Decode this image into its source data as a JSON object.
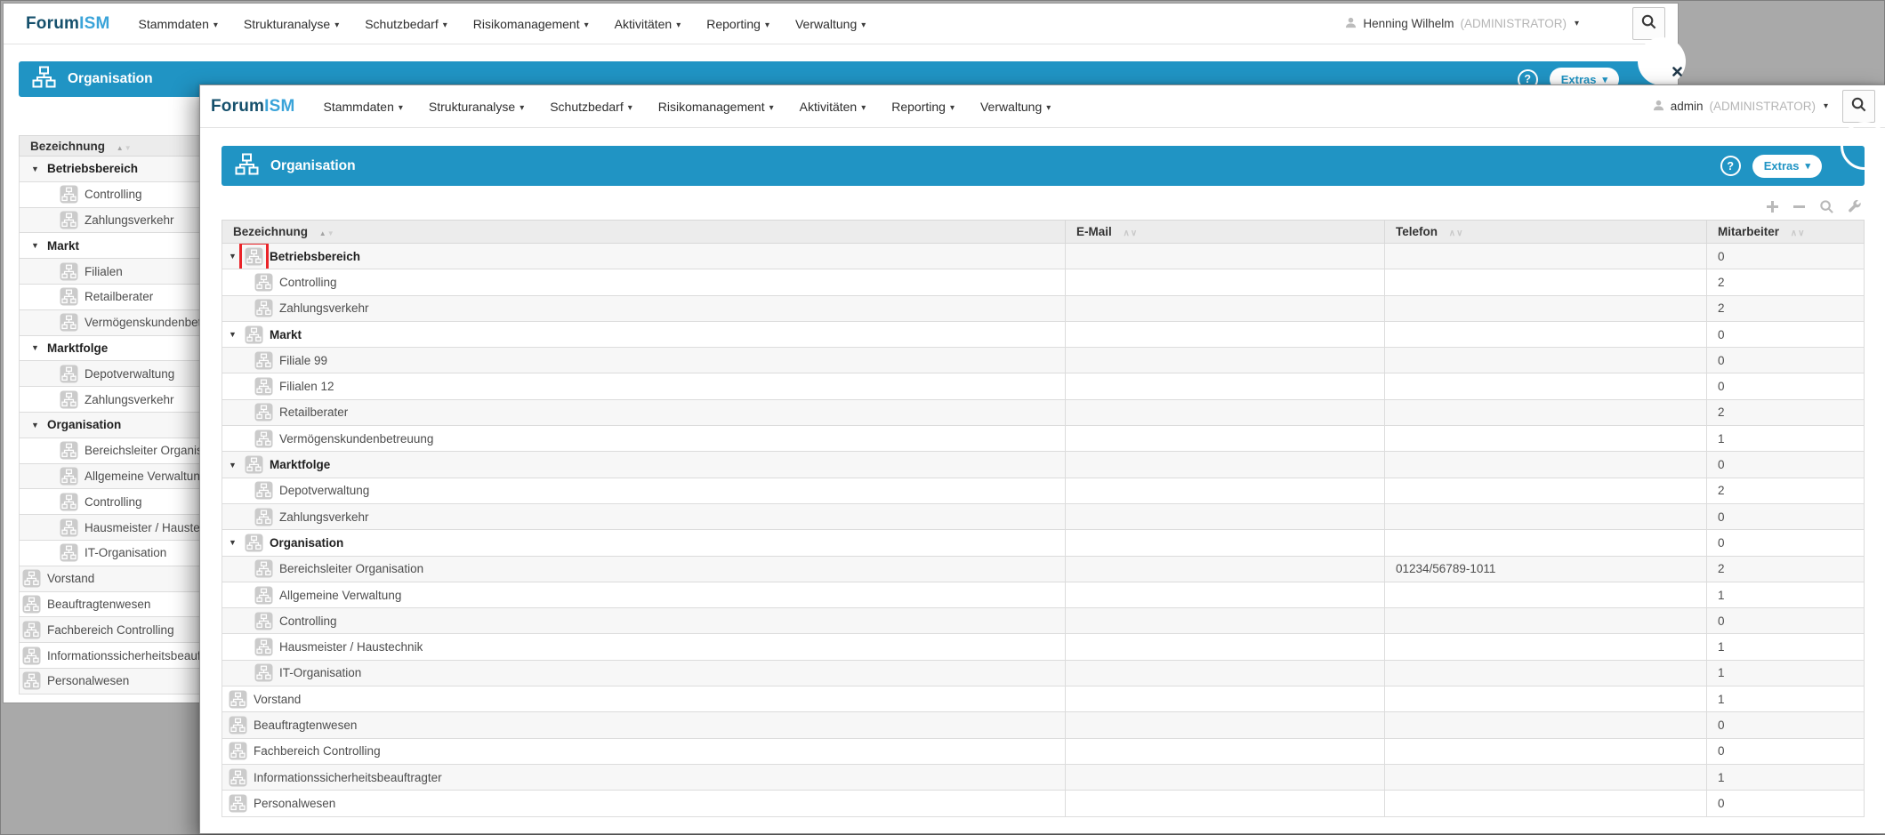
{
  "colors": {
    "accent_blue": "#2094c4",
    "highlight_red": "#ea2328",
    "backdrop_gray": "#a9a9a9"
  },
  "background_window": {
    "logo": {
      "forum": "Forum",
      "ism": "ISM"
    },
    "nav": [
      "Stammdaten",
      "Strukturanalyse",
      "Schutzbedarf",
      "Risikomanagement",
      "Aktivitäten",
      "Reporting",
      "Verwaltung"
    ],
    "user_name": "Henning Wilhelm",
    "user_role": "(ADMINISTRATOR)",
    "panel_title": "Organisation",
    "help_label": "?",
    "extras_label": "Extras",
    "table": {
      "column_header": "Bezeichnung",
      "rows": [
        {
          "label": "Betriebsbereich",
          "type": "parent"
        },
        {
          "label": "Controlling",
          "type": "child"
        },
        {
          "label": "Zahlungsverkehr",
          "type": "child"
        },
        {
          "label": "Markt",
          "type": "parent"
        },
        {
          "label": "Filialen",
          "type": "child"
        },
        {
          "label": "Retailberater",
          "type": "child"
        },
        {
          "label": "Vermögenskundenbetreuung",
          "type": "child"
        },
        {
          "label": "Marktfolge",
          "type": "parent"
        },
        {
          "label": "Depotverwaltung",
          "type": "child"
        },
        {
          "label": "Zahlungsverkehr",
          "type": "child"
        },
        {
          "label": "Organisation",
          "type": "parent"
        },
        {
          "label": "Bereichsleiter Organisation",
          "type": "child"
        },
        {
          "label": "Allgemeine Verwaltung",
          "type": "child"
        },
        {
          "label": "Controlling",
          "type": "child"
        },
        {
          "label": "Hausmeister / Haustechnik",
          "type": "child"
        },
        {
          "label": "IT-Organisation",
          "type": "child"
        },
        {
          "label": "Vorstand",
          "type": "flat"
        },
        {
          "label": "Beauftragtenwesen",
          "type": "flat"
        },
        {
          "label": "Fachbereich Controlling",
          "type": "flat"
        },
        {
          "label": "Informationssicherheitsbeauftragter",
          "type": "flat"
        },
        {
          "label": "Personalwesen",
          "type": "flat"
        }
      ]
    }
  },
  "modal_window": {
    "logo": {
      "forum": "Forum",
      "ism": "ISM"
    },
    "nav": [
      "Stammdaten",
      "Strukturanalyse",
      "Schutzbedarf",
      "Risikomanagement",
      "Aktivitäten",
      "Reporting",
      "Verwaltung"
    ],
    "user_name": "admin",
    "user_role": "(ADMINISTRATOR)",
    "panel_title": "Organisation",
    "help_label": "?",
    "extras_label": "Extras",
    "toolbar_icons": [
      "plus-icon",
      "minus-icon",
      "zoom-icon",
      "wrench-icon"
    ],
    "table": {
      "columns": [
        "Bezeichnung",
        "E-Mail",
        "Telefon",
        "Mitarbeiter"
      ],
      "rows": [
        {
          "label": "Betriebsbereich",
          "type": "parent",
          "email": "",
          "telefon": "",
          "mitarbeiter": "0",
          "highlighted": true
        },
        {
          "label": "Controlling",
          "type": "child",
          "email": "",
          "telefon": "",
          "mitarbeiter": "2"
        },
        {
          "label": "Zahlungsverkehr",
          "type": "child",
          "email": "",
          "telefon": "",
          "mitarbeiter": "2"
        },
        {
          "label": "Markt",
          "type": "parent",
          "email": "",
          "telefon": "",
          "mitarbeiter": "0"
        },
        {
          "label": "Filiale 99",
          "type": "child",
          "email": "",
          "telefon": "",
          "mitarbeiter": "0"
        },
        {
          "label": "Filialen 12",
          "type": "child",
          "email": "",
          "telefon": "",
          "mitarbeiter": "0"
        },
        {
          "label": "Retailberater",
          "type": "child",
          "email": "",
          "telefon": "",
          "mitarbeiter": "2"
        },
        {
          "label": "Vermögenskundenbetreuung",
          "type": "child",
          "email": "",
          "telefon": "",
          "mitarbeiter": "1"
        },
        {
          "label": "Marktfolge",
          "type": "parent",
          "email": "",
          "telefon": "",
          "mitarbeiter": "0"
        },
        {
          "label": "Depotverwaltung",
          "type": "child",
          "email": "",
          "telefon": "",
          "mitarbeiter": "2"
        },
        {
          "label": "Zahlungsverkehr",
          "type": "child",
          "email": "",
          "telefon": "",
          "mitarbeiter": "0"
        },
        {
          "label": "Organisation",
          "type": "parent",
          "email": "",
          "telefon": "",
          "mitarbeiter": "0"
        },
        {
          "label": "Bereichsleiter Organisation",
          "type": "child",
          "email": "",
          "telefon": "01234/56789-1011",
          "mitarbeiter": "2"
        },
        {
          "label": "Allgemeine Verwaltung",
          "type": "child",
          "email": "",
          "telefon": "",
          "mitarbeiter": "1"
        },
        {
          "label": "Controlling",
          "type": "child",
          "email": "",
          "telefon": "",
          "mitarbeiter": "0"
        },
        {
          "label": "Hausmeister / Haustechnik",
          "type": "child",
          "email": "",
          "telefon": "",
          "mitarbeiter": "1"
        },
        {
          "label": "IT-Organisation",
          "type": "child",
          "email": "",
          "telefon": "",
          "mitarbeiter": "1"
        },
        {
          "label": "Vorstand",
          "type": "flat",
          "email": "",
          "telefon": "",
          "mitarbeiter": "1"
        },
        {
          "label": "Beauftragtenwesen",
          "type": "flat",
          "email": "",
          "telefon": "",
          "mitarbeiter": "0"
        },
        {
          "label": "Fachbereich Controlling",
          "type": "flat",
          "email": "",
          "telefon": "",
          "mitarbeiter": "0"
        },
        {
          "label": "Informationssicherheitsbeauftragter",
          "type": "flat",
          "email": "",
          "telefon": "",
          "mitarbeiter": "1"
        },
        {
          "label": "Personalwesen",
          "type": "flat",
          "email": "",
          "telefon": "",
          "mitarbeiter": "0"
        }
      ]
    }
  }
}
